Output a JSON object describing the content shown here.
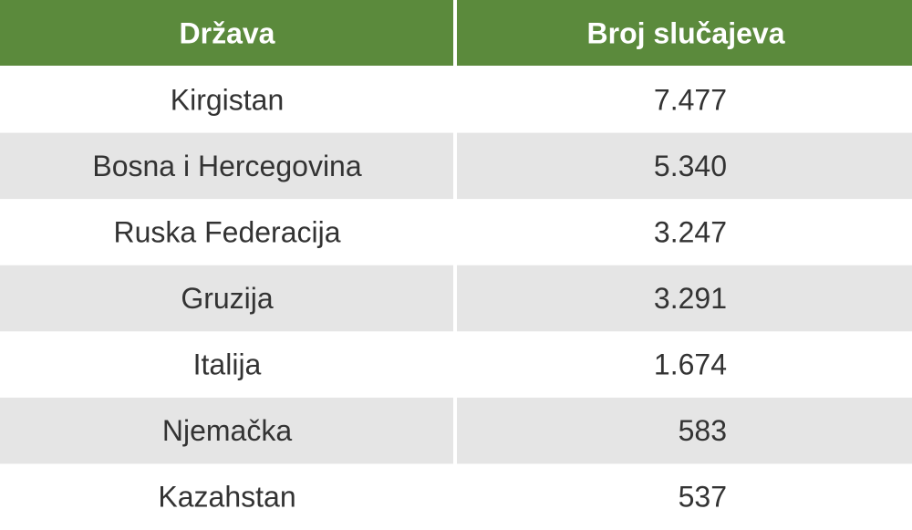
{
  "table": {
    "header": [
      "Država",
      "Broj slučajeva"
    ],
    "rows": [
      [
        "Kirgistan",
        "7.477"
      ],
      [
        "Bosna i Hercegovina",
        "5.340"
      ],
      [
        "Ruska Federacija",
        "3.247"
      ],
      [
        "Gruzija",
        "3.291"
      ],
      [
        "Italija",
        "1.674"
      ],
      [
        "Njemačka",
        "583"
      ],
      [
        "Kazahstan",
        "537"
      ]
    ]
  }
}
